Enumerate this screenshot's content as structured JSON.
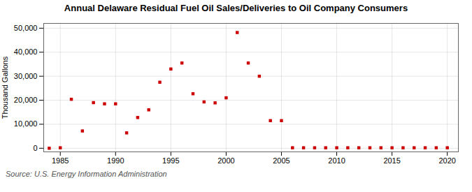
{
  "chart_data": {
    "type": "scatter",
    "title": "Annual Delaware Residual Fuel Oil Sales/Deliveries to Oil Company Consumers",
    "ylabel": "Thousand Gallons",
    "source": "Source: U.S. Energy Information Administration",
    "x": [
      1984,
      1985,
      1986,
      1987,
      1988,
      1989,
      1990,
      1991,
      1992,
      1993,
      1994,
      1995,
      1996,
      1997,
      1998,
      1999,
      2000,
      2001,
      2002,
      2003,
      2004,
      2005,
      2006,
      2007,
      2008,
      2009,
      2010,
      2011,
      2012,
      2013,
      2014,
      2015,
      2016,
      2017,
      2018,
      2019,
      2020
    ],
    "values": [
      0,
      200,
      20400,
      7200,
      19000,
      18500,
      18500,
      6400,
      12800,
      16000,
      27500,
      33000,
      35500,
      22700,
      19300,
      18900,
      21000,
      48200,
      35500,
      30000,
      11500,
      11500,
      200,
      200,
      200,
      200,
      200,
      200,
      200,
      200,
      200,
      200,
      200,
      200,
      200,
      200,
      200
    ],
    "color": "#cc0000",
    "marker": "square",
    "xlim": [
      1983.5,
      2021
    ],
    "ylim": [
      -1500,
      52000
    ],
    "xticks": [
      1985,
      1990,
      1995,
      2000,
      2005,
      2010,
      2015,
      2020
    ],
    "yticks": [
      0,
      {
        "value": 10000,
        "label": "10,000"
      },
      {
        "value": 20000,
        "label": "20,000"
      },
      {
        "value": 30000,
        "label": "30,000"
      },
      {
        "value": 40000,
        "label": "40,000"
      },
      {
        "value": 50000,
        "label": "50,000"
      }
    ],
    "grid": true
  }
}
